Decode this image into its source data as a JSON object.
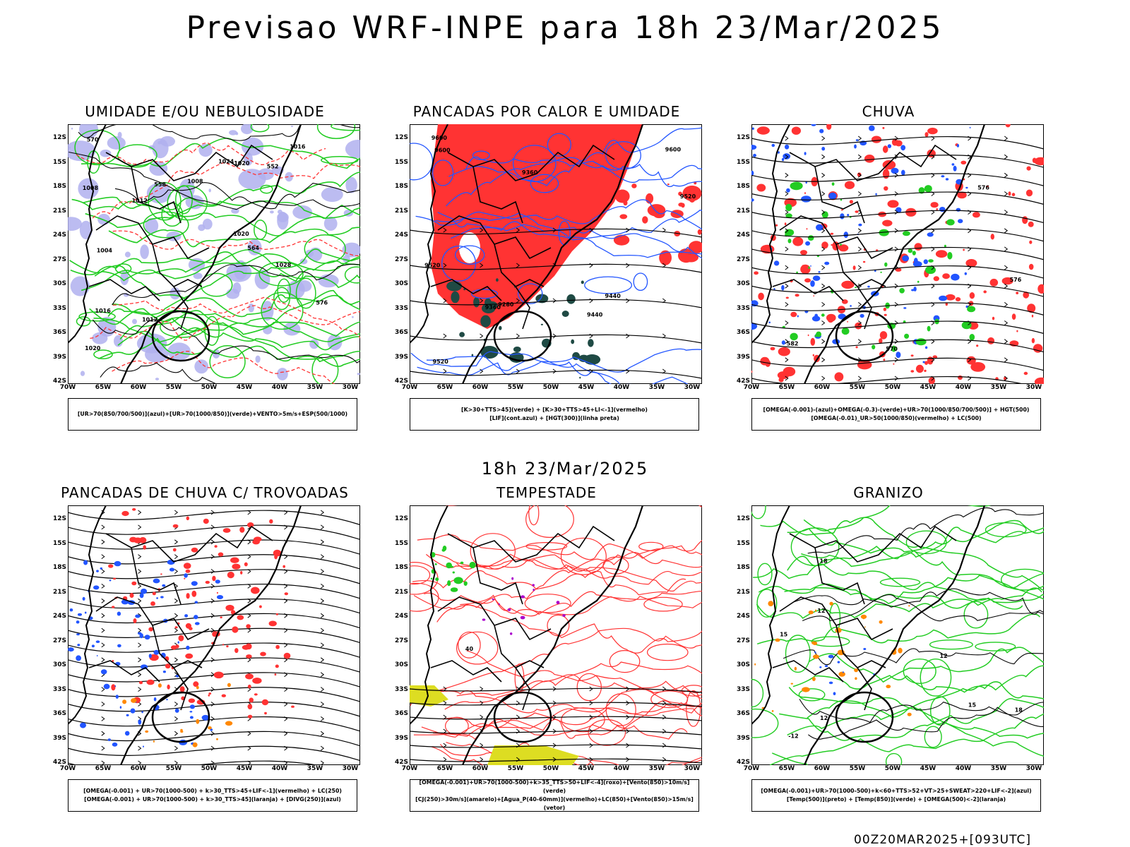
{
  "title": "Previsao WRF-INPE  para 18h 23/Mar/2025",
  "subtitle": "18h 23/Mar/2025",
  "footer": "00Z20MAR2025+[093UTC]",
  "axes": {
    "y_ticks": [
      "12S",
      "15S",
      "18S",
      "21S",
      "24S",
      "27S",
      "30S",
      "33S",
      "36S",
      "39S",
      "42S"
    ],
    "x_ticks": [
      "70W",
      "65W",
      "60W",
      "55W",
      "50W",
      "45W",
      "40W",
      "35W",
      "30W"
    ]
  },
  "colors": {
    "green": "#22cc22",
    "red": "#ff3333",
    "blue": "#2255ff",
    "lavender": "#b0b0ee",
    "dark_green": "#1f4a44",
    "orange": "#ff8800",
    "yellow": "#dddd22",
    "purple": "#aa00cc"
  },
  "panels": [
    {
      "title": "UMIDADE E/OU NEBULOSIDADE",
      "legend": [
        "[UR>70(850/700/500)](azul)+[UR>70(1000/850)](verde)+VENTO>5m/s+ESP(500/1000)"
      ],
      "contour_labels": [
        "1008",
        "1012",
        "1004",
        "1008",
        "1012",
        "1016",
        "1016",
        "1020",
        "1020",
        "1024",
        "1028",
        "1020",
        "576",
        "570",
        "564",
        "558",
        "552"
      ]
    },
    {
      "title": "PANCADAS POR CALOR E UMIDADE",
      "legend": [
        "[K>30+TTS>45](verde) + [K>30+TTS>45+LI<-1](vermelho)",
        "[LIF](cont.azul) + [HGT(300)](linha preta)"
      ],
      "contour_labels": [
        "9600",
        "9600",
        "9520",
        "9600",
        "9520",
        "9440",
        "9360",
        "9280",
        "9520",
        "9440",
        "9360"
      ]
    },
    {
      "title": "CHUVA",
      "legend": [
        "[OMEGA(-0.001)-(azul)+OMEGA(-0.3)-(verde)+UR>70(1000/850/700/500)] + HGT(500)",
        "[OMEGA(-0.01)_UR>50(1000/850)(vermelho) + LC(500)"
      ],
      "contour_labels": [
        "582",
        "576",
        "576",
        "570"
      ]
    },
    {
      "title": "PANCADAS DE CHUVA C/ TROVOADAS",
      "legend": [
        "[OMEGA(-0.001) + UR>70(1000-500) + k>30_TTS>45+LIF<-1](vermelho) + LC(250)",
        "[OMEGA(-0.001) + UR>70(1000-500) + k>30_TTS>45](laranja) + [DIVG(250)](azul)"
      ],
      "contour_labels": []
    },
    {
      "title": "TEMPESTADE",
      "legend": [
        "[OMEGA(-0.001)+UR>70(1000-500)+k>35_TTS>50+LIF<-4](roxo)+[Vento(850)>10m/s](verde)",
        "[CJ(250)>30m/s](amarelo)+[Agua_P(40-60mm)](vermelho)+LC(850)+[Vento(850)>15m/s](vetor)"
      ],
      "contour_labels": [
        "40"
      ]
    },
    {
      "title": "GRANIZO",
      "legend": [
        "[OMEGA(-0.001)+UR>70(1000-500)+k<60+TTS>52+VT>25+SWEAT>220+LIF<-2](azul)",
        "[Temp(500)](preto) + [Temp(850)](verde) + [OMEGA(500)<-2](laranja)"
      ],
      "contour_labels": [
        "12",
        "12",
        "15",
        "15",
        "18",
        "18",
        "12",
        "-12"
      ]
    }
  ]
}
